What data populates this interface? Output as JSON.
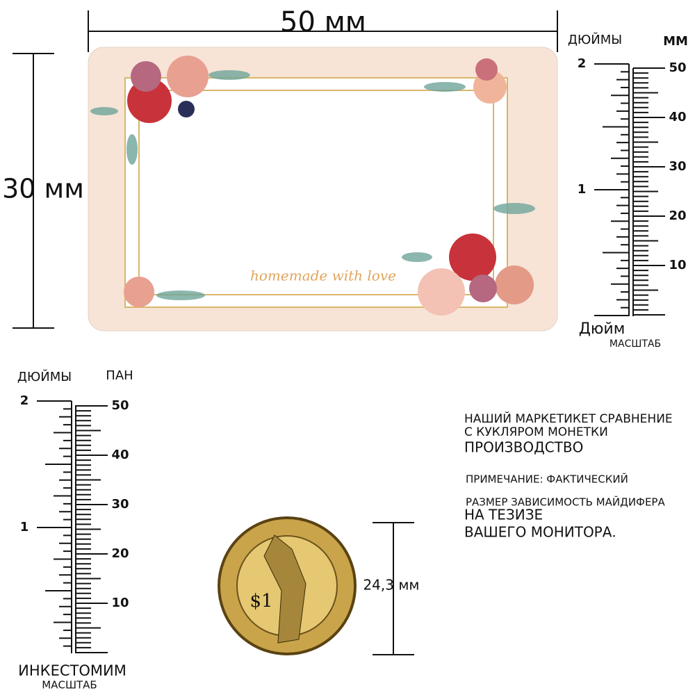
{
  "card": {
    "width_label": "50 мм",
    "height_label": "30 мм",
    "script_text": "homemade with love"
  },
  "ruler_right": {
    "inch_header": "ДЮЙМЫ",
    "mm_header": "ММ",
    "inch_labels": [
      "2",
      "1"
    ],
    "mm_labels": [
      "50",
      "40",
      "30",
      "20",
      "10"
    ],
    "footer": "Дюйм",
    "footer_sub": "МАСШТАБ"
  },
  "ruler_left": {
    "inch_header": "ДЮЙМЫ",
    "mm_header": "ПАН",
    "inch_labels": [
      "2",
      "1"
    ],
    "mm_labels": [
      "50",
      "40",
      "30",
      "20",
      "10"
    ],
    "footer": "ИНКЕСТОМИМ",
    "footer_sub": "МАСШТАБ"
  },
  "coin": {
    "size_label": "24,3 мм",
    "denomination": "$1"
  },
  "note": {
    "lines": [
      "НАШИЙ МАРКЕТИКЕТ СРАВНЕНИЕ",
      "С КУКЛЯРОМ МОНЕТКИ",
      "ПРОИЗВОДСТВО",
      "ПРИМЕЧАНИЕ: ФАКТИЧЕСКИЙ",
      "РАЗМЕР ЗАВИСИМОСТЬ МАЙДИФЕРА",
      "НА ТЕЗИЗЕ",
      "ВАШЕГО МОНИТОРА."
    ]
  }
}
